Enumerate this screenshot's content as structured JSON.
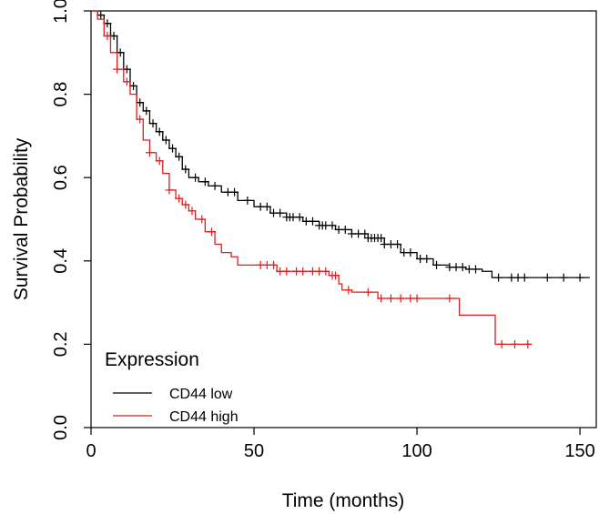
{
  "chart_data": {
    "type": "line",
    "subtype": "kaplan-meier",
    "xlabel": "Time (months)",
    "ylabel": "Survival Probability",
    "xlim": [
      0,
      155
    ],
    "ylim": [
      0,
      1
    ],
    "xticks": [
      0,
      50,
      100,
      150
    ],
    "yticks": [
      0.0,
      0.2,
      0.4,
      0.6,
      0.8,
      1.0
    ],
    "xtick_labels": [
      "0",
      "50",
      "100",
      "150"
    ],
    "ytick_labels": [
      "0.0",
      "0.2",
      "0.4",
      "0.6",
      "0.8",
      "1.0"
    ],
    "grid": false,
    "legend": {
      "title": "Expression",
      "position": "bottom-left"
    },
    "series": [
      {
        "name": "CD44 low",
        "color": "#000000",
        "steps": [
          [
            0,
            1.0
          ],
          [
            2,
            0.99
          ],
          [
            4,
            0.97
          ],
          [
            6,
            0.94
          ],
          [
            8,
            0.9
          ],
          [
            10,
            0.86
          ],
          [
            12,
            0.82
          ],
          [
            14,
            0.78
          ],
          [
            16,
            0.76
          ],
          [
            18,
            0.73
          ],
          [
            20,
            0.71
          ],
          [
            22,
            0.69
          ],
          [
            24,
            0.67
          ],
          [
            26,
            0.65
          ],
          [
            28,
            0.62
          ],
          [
            30,
            0.6
          ],
          [
            33,
            0.59
          ],
          [
            36,
            0.58
          ],
          [
            40,
            0.565
          ],
          [
            45,
            0.545
          ],
          [
            50,
            0.53
          ],
          [
            55,
            0.515
          ],
          [
            60,
            0.505
          ],
          [
            65,
            0.495
          ],
          [
            70,
            0.485
          ],
          [
            75,
            0.475
          ],
          [
            80,
            0.465
          ],
          [
            85,
            0.455
          ],
          [
            90,
            0.44
          ],
          [
            95,
            0.42
          ],
          [
            100,
            0.405
          ],
          [
            105,
            0.39
          ],
          [
            110,
            0.385
          ],
          [
            115,
            0.38
          ],
          [
            120,
            0.375
          ],
          [
            123,
            0.36
          ],
          [
            153,
            0.36
          ]
        ],
        "censor_x": [
          3,
          5,
          6,
          7,
          9,
          11,
          13,
          15,
          17,
          19,
          21,
          23,
          25,
          27,
          29,
          32,
          35,
          38,
          42,
          44,
          48,
          52,
          54,
          56,
          58,
          60,
          61,
          62,
          64,
          66,
          68,
          70,
          71,
          72,
          74,
          76,
          78,
          80,
          82,
          84,
          85,
          86,
          87,
          88,
          89,
          90,
          92,
          94,
          96,
          98,
          101,
          103,
          106,
          110,
          112,
          114,
          116,
          118,
          125,
          129,
          131,
          133,
          140,
          145,
          150
        ]
      },
      {
        "name": "CD44 high",
        "color": "#e41a1c",
        "steps": [
          [
            0,
            1.0
          ],
          [
            2,
            0.98
          ],
          [
            4,
            0.94
          ],
          [
            6,
            0.9
          ],
          [
            8,
            0.86
          ],
          [
            10,
            0.83
          ],
          [
            12,
            0.8
          ],
          [
            14,
            0.74
          ],
          [
            16,
            0.69
          ],
          [
            18,
            0.66
          ],
          [
            20,
            0.64
          ],
          [
            22,
            0.61
          ],
          [
            24,
            0.57
          ],
          [
            26,
            0.55
          ],
          [
            28,
            0.535
          ],
          [
            30,
            0.52
          ],
          [
            32,
            0.5
          ],
          [
            35,
            0.47
          ],
          [
            38,
            0.44
          ],
          [
            40,
            0.42
          ],
          [
            43,
            0.41
          ],
          [
            45,
            0.39
          ],
          [
            55,
            0.39
          ],
          [
            57,
            0.375
          ],
          [
            73,
            0.365
          ],
          [
            76,
            0.345
          ],
          [
            77,
            0.33
          ],
          [
            80,
            0.325
          ],
          [
            88,
            0.31
          ],
          [
            112,
            0.31
          ],
          [
            113,
            0.27
          ],
          [
            123,
            0.27
          ],
          [
            124,
            0.2
          ],
          [
            135,
            0.2
          ]
        ],
        "censor_x": [
          5,
          8,
          11,
          15,
          18,
          21,
          24,
          27,
          29,
          31,
          34,
          37,
          52,
          54,
          56,
          58,
          60,
          63,
          65,
          68,
          70,
          72,
          74,
          75,
          79,
          85,
          89,
          92,
          95,
          98,
          100,
          110,
          126,
          130,
          134
        ]
      }
    ]
  }
}
